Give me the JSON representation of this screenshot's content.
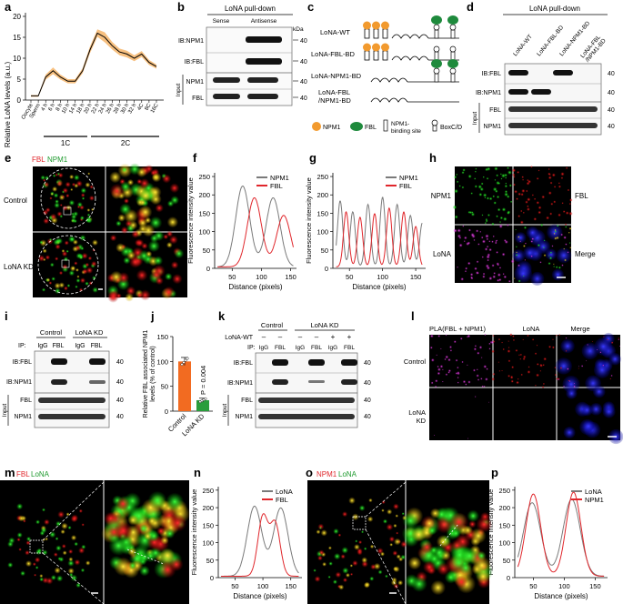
{
  "panels": [
    "a",
    "b",
    "c",
    "d",
    "e",
    "f",
    "g",
    "h",
    "i",
    "j",
    "k",
    "l",
    "m",
    "n",
    "o",
    "p"
  ],
  "a": {
    "ylabel": "Relative LoNA levels (a.u.)",
    "yticks": [
      "0",
      "5",
      "10",
      "15",
      "20"
    ],
    "xcats": [
      "Oocyte",
      "Sperm",
      "4 h",
      "6 h",
      "8 h",
      "10 h",
      "14 h",
      "18 h",
      "20 h",
      "22 h",
      "24 h",
      "26 h",
      "28 h",
      "30 h",
      "32 h",
      "4C",
      "8C",
      "16C"
    ],
    "groups": [
      "1C",
      "2C"
    ],
    "color": "#f2962b"
  },
  "b": {
    "title": "LoNA pull-down",
    "cols": [
      "Sense",
      "Antisense"
    ],
    "rows": [
      "IB:NPM1",
      "IB:FBL",
      "NPM1",
      "FBL"
    ],
    "input": "Input",
    "kda": "kDa",
    "mw": [
      "40",
      "40",
      "40",
      "40"
    ]
  },
  "c": {
    "constructs": [
      "LoNA-WT",
      "LoNA-FBL-BD",
      "LoNA-NPM1-BD",
      "LoNA-FBL\n/NPM1-BD"
    ],
    "legend": [
      "NPM1",
      "FBL",
      "NPM1-binding site",
      "BoxC/D"
    ],
    "npm1_color": "#f29a2e",
    "fbl_color": "#1e8a3c"
  },
  "d": {
    "title": "LoNA pull-down",
    "cols": [
      "LoNA-WT",
      "LoNA-FBL-BD",
      "LoNA-NPM1-BD",
      "LoNA-FBL\n/NPM1-BD"
    ],
    "rows": [
      "IB:FBL",
      "IB:NPM1",
      "FBL",
      "NPM1"
    ],
    "input": "Input",
    "mw": [
      "40",
      "40",
      "40",
      "40"
    ]
  },
  "e": {
    "label_fbl": "FBL",
    "label_npm1": "NPM1",
    "rows": [
      "Control",
      "LoNA KD"
    ]
  },
  "f": {
    "chart_data": {
      "type": "line",
      "ylabel": "Fluorescence intensity value",
      "xlabel": "Distance (pixels)",
      "xticks": [
        50,
        100,
        150
      ],
      "yticks": [
        0,
        50,
        100,
        150,
        200,
        250
      ],
      "xlim": [
        20,
        160
      ],
      "ylim": [
        0,
        260
      ],
      "series": [
        {
          "name": "NPM1",
          "color": "#7a7a7a",
          "peaks": [
            [
              68,
              220
            ],
            [
              120,
              188
            ]
          ],
          "width": 12
        },
        {
          "name": "FBL",
          "color": "#e0262b",
          "peaks": [
            [
              88,
              188
            ],
            [
              138,
              140
            ]
          ],
          "width": 12
        }
      ]
    }
  },
  "g": {
    "chart_data": {
      "type": "line",
      "ylabel": "Fluorescence intensity value",
      "xlabel": "Distance (pixels)",
      "xticks": [
        50,
        100,
        150
      ],
      "yticks": [
        0,
        50,
        100,
        150,
        200,
        250
      ],
      "xlim": [
        25,
        165
      ],
      "ylim": [
        0,
        260
      ],
      "series": [
        {
          "name": "NPM1",
          "color": "#7a7a7a",
          "peaks": [
            [
              36,
              180
            ],
            [
              55,
              150
            ],
            [
              78,
              170
            ],
            [
              100,
              190
            ],
            [
              122,
              170
            ],
            [
              142,
              140
            ],
            [
              160,
              120
            ]
          ],
          "width": 4
        },
        {
          "name": "FBL",
          "color": "#e0262b",
          "peaks": [
            [
              45,
              150
            ],
            [
              66,
              135
            ],
            [
              88,
              145
            ],
            [
              110,
              160
            ],
            [
              132,
              150
            ],
            [
              150,
              110
            ]
          ],
          "width": 4
        }
      ]
    }
  },
  "h": {
    "labels": [
      "NPM1",
      "FBL",
      "LoNA",
      "Merge"
    ]
  },
  "i": {
    "groups": [
      "Control",
      "LoNA KD"
    ],
    "ip": "IP:",
    "cols": [
      "IgG",
      "FBL",
      "IgG",
      "FBL"
    ],
    "rows": [
      "IB:FBL",
      "IB:NPM1",
      "FBL",
      "NPM1"
    ],
    "input": "Input",
    "mw": [
      "40",
      "40",
      "40",
      "40"
    ]
  },
  "j": {
    "chart_data": {
      "type": "bar",
      "ylabel": "Relative FBL associated NPM1 levels (% of control)",
      "categories": [
        "Control",
        "LoNA KD"
      ],
      "values": [
        100,
        22
      ],
      "colors": [
        "#f26b21",
        "#2a9d3c"
      ],
      "yticks": [
        0,
        50,
        100,
        150
      ],
      "ylim": [
        0,
        150
      ],
      "pvalue": "P = 0.004"
    }
  },
  "k": {
    "groups": [
      "Control",
      "LoNA KD"
    ],
    "lona_wt": "LoNA-WT",
    "signs": [
      "–",
      "–",
      "–",
      "–",
      "+",
      "+"
    ],
    "ip": "IP:",
    "cols": [
      "IgG",
      "FBL",
      "IgG",
      "FBL",
      "IgG",
      "FBL"
    ],
    "rows": [
      "IB:FBL",
      "IB:NPM1",
      "FBL",
      "NPM1"
    ],
    "input": "Input",
    "mw": [
      "40",
      "40",
      "40",
      "40"
    ]
  },
  "l": {
    "cols": [
      "PLA(FBL + NPM1)",
      "LoNA",
      "Merge"
    ],
    "rows": [
      "Control",
      "LoNA\nKD"
    ]
  },
  "m": {
    "label_fbl": "FBL",
    "label_lona": "LoNA"
  },
  "n": {
    "chart_data": {
      "type": "line",
      "ylabel": "Fluorescence intensity value",
      "xlabel": "Distance (pixels)",
      "xticks": [
        50,
        100,
        150
      ],
      "yticks": [
        0,
        50,
        100,
        150,
        200,
        250
      ],
      "xlim": [
        20,
        170
      ],
      "ylim": [
        0,
        260
      ],
      "series": [
        {
          "name": "LoNA",
          "color": "#7a7a7a",
          "peaks": [
            [
              85,
              200
            ],
            [
              132,
              195
            ]
          ],
          "width": 13
        },
        {
          "name": "FBL",
          "color": "#e0262b",
          "peaks": [
            [
              100,
              170
            ],
            [
              122,
              150
            ]
          ],
          "width": 9
        }
      ]
    }
  },
  "o": {
    "label_npm1": "NPM1",
    "label_lona": "LoNA"
  },
  "p": {
    "chart_data": {
      "type": "line",
      "ylabel": "Fluorescence intensity value",
      "xlabel": "Distance (pixels)",
      "xticks": [
        50,
        100,
        150
      ],
      "yticks": [
        0,
        50,
        100,
        150,
        200,
        250
      ],
      "xlim": [
        20,
        170
      ],
      "ylim": [
        0,
        260
      ],
      "series": [
        {
          "name": "LoNA",
          "color": "#7a7a7a",
          "peaks": [
            [
              48,
              210
            ],
            [
              112,
              220
            ]
          ],
          "width": 14
        },
        {
          "name": "NPM1",
          "color": "#e0262b",
          "peaks": [
            [
              50,
              235
            ],
            [
              115,
              240
            ]
          ],
          "width": 12
        }
      ]
    }
  }
}
